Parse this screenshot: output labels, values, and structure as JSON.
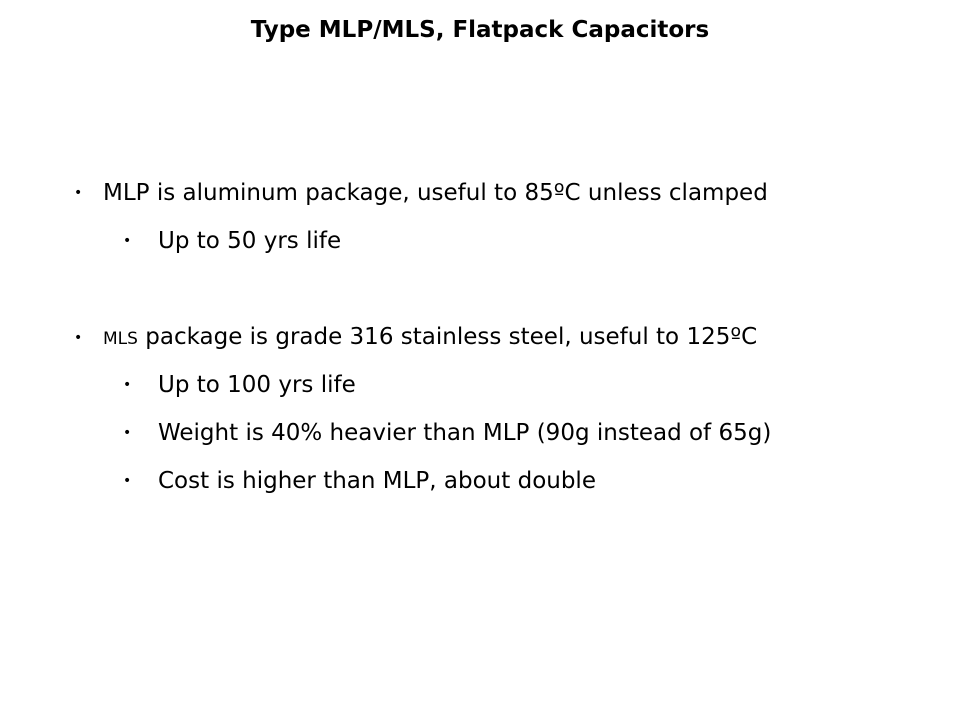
{
  "title": "Type MLP/MLS, Flatpack Capacitors",
  "bullets": [
    {
      "text": "MLP is aluminum package, useful to 85ºC unless clamped",
      "sub": [
        "Up to 50 yrs life"
      ]
    },
    {
      "prefix": "MLS",
      "text": " package is grade 316 stainless steel, useful to 125ºC",
      "sub": [
        "Up to 100 yrs life",
        "Weight is 40% heavier than MLP (90g instead of 65g)",
        "Cost is higher than MLP, about double"
      ]
    }
  ]
}
